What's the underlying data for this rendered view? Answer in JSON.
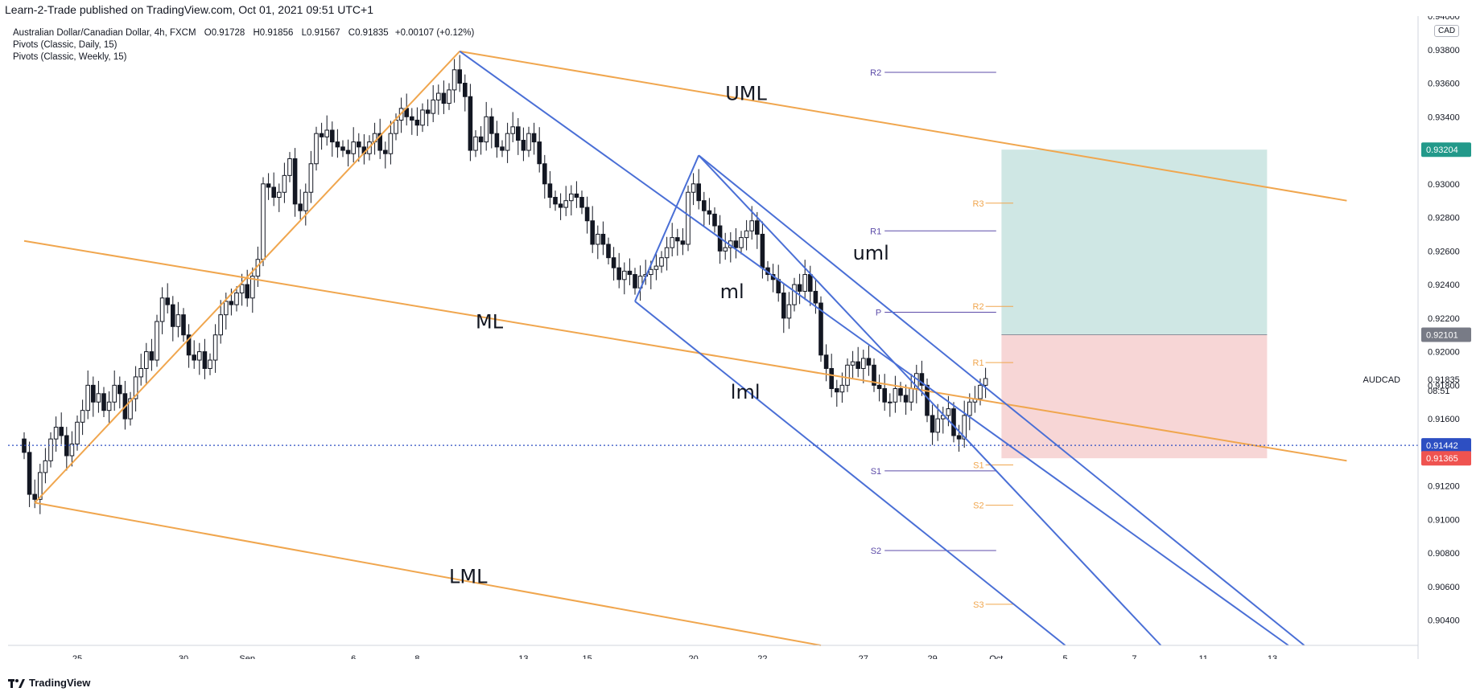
{
  "header": {
    "published": "Learn-2-Trade published on TradingView.com, Oct 01, 2021 09:51 UTC+1"
  },
  "legend": {
    "title": "Australian Dollar/Canadian Dollar, 4h, FXCM",
    "ohlc": [
      {
        "k": "O",
        "v": "0.91728"
      },
      {
        "k": "H",
        "v": "0.91856"
      },
      {
        "k": "L",
        "v": "0.91567"
      },
      {
        "k": "C",
        "v": "0.91835"
      }
    ],
    "change": "+0.00107 (+0.12%)",
    "indicators": [
      "Pivots (Classic, Daily, 15)",
      "Pivots (Classic, Weekly, 15)"
    ]
  },
  "footer": {
    "brand": "TradingView"
  },
  "colors": {
    "up": "#ffffff",
    "down": "#131722",
    "orange": "#f0a64e",
    "blue": "#4a6fd6",
    "weekly_pivot": "#5c4ba8",
    "daily_pivot": "#f0a64e",
    "target_zone": "#cfe7e4",
    "stop_zone": "#f7d6d6",
    "dotted": "#2d4fc2"
  },
  "chart_data": {
    "type": "candlestick",
    "symbol": "AUDCAD",
    "currency": "CAD",
    "ylim": [
      0.9025,
      0.94
    ],
    "y_ticks": [
      "0.94000",
      "0.93800",
      "0.93600",
      "0.93400",
      "0.93200",
      "0.93000",
      "0.92800",
      "0.92600",
      "0.92400",
      "0.92200",
      "0.92000",
      "0.91800",
      "0.91600",
      "0.91400",
      "0.91200",
      "0.91000",
      "0.90800",
      "0.90600",
      "0.90400"
    ],
    "x_ticks": [
      {
        "label": "25",
        "bar": 10
      },
      {
        "label": "30",
        "bar": 30
      },
      {
        "label": "Sep",
        "bar": 42
      },
      {
        "label": "6",
        "bar": 62
      },
      {
        "label": "8",
        "bar": 74
      },
      {
        "label": "13",
        "bar": 94
      },
      {
        "label": "15",
        "bar": 106
      },
      {
        "label": "20",
        "bar": 126
      },
      {
        "label": "22",
        "bar": 139
      },
      {
        "label": "27",
        "bar": 158
      },
      {
        "label": "29",
        "bar": 171
      },
      {
        "label": "Oct",
        "bar": 183
      },
      {
        "label": "5",
        "bar": 196
      },
      {
        "label": "7",
        "bar": 209
      },
      {
        "label": "11",
        "bar": 222
      },
      {
        "label": "13",
        "bar": 235
      }
    ],
    "closes": [
      0.914,
      0.9115,
      0.9112,
      0.9128,
      0.9135,
      0.9148,
      0.9155,
      0.915,
      0.9138,
      0.9145,
      0.9158,
      0.9165,
      0.918,
      0.917,
      0.9175,
      0.9165,
      0.917,
      0.918,
      0.9175,
      0.916,
      0.9172,
      0.9185,
      0.919,
      0.92,
      0.9195,
      0.9218,
      0.9232,
      0.9228,
      0.9215,
      0.9222,
      0.921,
      0.9198,
      0.9195,
      0.92,
      0.919,
      0.9195,
      0.921,
      0.9222,
      0.923,
      0.9228,
      0.9235,
      0.924,
      0.9232,
      0.9245,
      0.9255,
      0.93,
      0.9298,
      0.9292,
      0.9295,
      0.9305,
      0.9315,
      0.9288,
      0.9284,
      0.9295,
      0.9312,
      0.933,
      0.9328,
      0.9332,
      0.9325,
      0.9322,
      0.932,
      0.9318,
      0.9325,
      0.9322,
      0.9318,
      0.9325,
      0.933,
      0.932,
      0.9318,
      0.933,
      0.9338,
      0.9345,
      0.934,
      0.9338,
      0.9335,
      0.9344,
      0.9342,
      0.935,
      0.9354,
      0.9348,
      0.9356,
      0.9368,
      0.936,
      0.9352,
      0.932,
      0.9328,
      0.9325,
      0.934,
      0.933,
      0.9322,
      0.932,
      0.933,
      0.9334,
      0.9326,
      0.932,
      0.933,
      0.9325,
      0.9312,
      0.93,
      0.9292,
      0.9288,
      0.9286,
      0.929,
      0.9294,
      0.9292,
      0.9286,
      0.9278,
      0.9264,
      0.927,
      0.9264,
      0.9256,
      0.925,
      0.9243,
      0.9248,
      0.9246,
      0.9238,
      0.9245,
      0.9246,
      0.9249,
      0.9251,
      0.9256,
      0.9262,
      0.9268,
      0.9266,
      0.9264,
      0.9295,
      0.93,
      0.929,
      0.9284,
      0.9282,
      0.9275,
      0.926,
      0.9262,
      0.9266,
      0.9262,
      0.9268,
      0.9272,
      0.9278,
      0.927,
      0.925,
      0.9246,
      0.9243,
      0.9235,
      0.922,
      0.9228,
      0.924,
      0.9236,
      0.9246,
      0.9236,
      0.9229,
      0.9198,
      0.919,
      0.9178,
      0.9176,
      0.918,
      0.9192,
      0.9194,
      0.919,
      0.9196,
      0.9192,
      0.918,
      0.9178,
      0.917,
      0.917,
      0.9178,
      0.9174,
      0.917,
      0.9178,
      0.9187,
      0.918,
      0.9162,
      0.9152,
      0.916,
      0.9162,
      0.9166,
      0.915,
      0.9148,
      0.9162,
      0.917,
      0.9172,
      0.918,
      0.9184
    ],
    "trend_lines": [
      {
        "name": "UML",
        "color": "orange",
        "from": [
          82,
          0.9379
        ],
        "to": [
          249,
          0.929
        ]
      },
      {
        "name": "ML",
        "color": "orange",
        "from": [
          0,
          0.9266
        ],
        "to": [
          249,
          0.9135
        ]
      },
      {
        "name": "LML",
        "color": "orange",
        "from": [
          2,
          0.911
        ],
        "to": [
          150,
          0.9025
        ]
      },
      {
        "name": "pitchfork-handle",
        "color": "orange",
        "from": [
          2,
          0.911
        ],
        "to": [
          82,
          0.9379
        ]
      },
      {
        "name": "upper-fork",
        "color": "blue",
        "from": [
          82,
          0.9379
        ],
        "to": [
          238,
          0.9025
        ]
      },
      {
        "name": "handle-2",
        "color": "blue",
        "from": [
          115,
          0.923
        ],
        "to": [
          127,
          0.9317
        ]
      },
      {
        "name": "uml",
        "color": "blue",
        "from": [
          127,
          0.9317
        ],
        "to": [
          241,
          0.9025
        ]
      },
      {
        "name": "ml",
        "color": "blue",
        "from": [
          127,
          0.9317
        ],
        "to": [
          214,
          0.9025
        ]
      },
      {
        "name": "lml",
        "color": "blue",
        "from": [
          115,
          0.923
        ],
        "to": [
          196,
          0.9025
        ]
      }
    ],
    "annotations": [
      {
        "text": "UML",
        "bar": 132,
        "y": 0.935
      },
      {
        "text": "ML",
        "bar": 85,
        "y": 0.9214
      },
      {
        "text": "LML",
        "bar": 80,
        "y": 0.9062
      },
      {
        "text": "uml",
        "bar": 156,
        "y": 0.9255
      },
      {
        "text": "ml",
        "bar": 131,
        "y": 0.9232
      },
      {
        "text": "lml",
        "bar": 133,
        "y": 0.9172
      }
    ],
    "weekly_pivots": [
      {
        "label": "R2",
        "y": 0.93665
      },
      {
        "label": "R1",
        "y": 0.9272
      },
      {
        "label": "P",
        "y": 0.92235
      },
      {
        "label": "S1",
        "y": 0.9129
      },
      {
        "label": "S2",
        "y": 0.90815
      }
    ],
    "daily_pivots": [
      {
        "label": "R3",
        "y": 0.92885
      },
      {
        "label": "R2",
        "y": 0.9227
      },
      {
        "label": "R1",
        "y": 0.91935
      },
      {
        "label": "S1",
        "y": 0.91325
      },
      {
        "label": "S2",
        "y": 0.91085
      },
      {
        "label": "S3",
        "y": 0.90495
      }
    ],
    "position": {
      "entry": 0.92101,
      "target": 0.93204,
      "stop": 0.91365,
      "entry_label": "0.92101",
      "target_label": "0.93204",
      "stop_label": "0.91365",
      "bars": [
        184,
        234
      ]
    },
    "last_price": {
      "symbol": "AUDCAD",
      "price": "0.91835",
      "countdown": "08:51",
      "y": 0.91835
    },
    "dotted_level": {
      "y": 0.91442,
      "label": "0.91442"
    }
  }
}
